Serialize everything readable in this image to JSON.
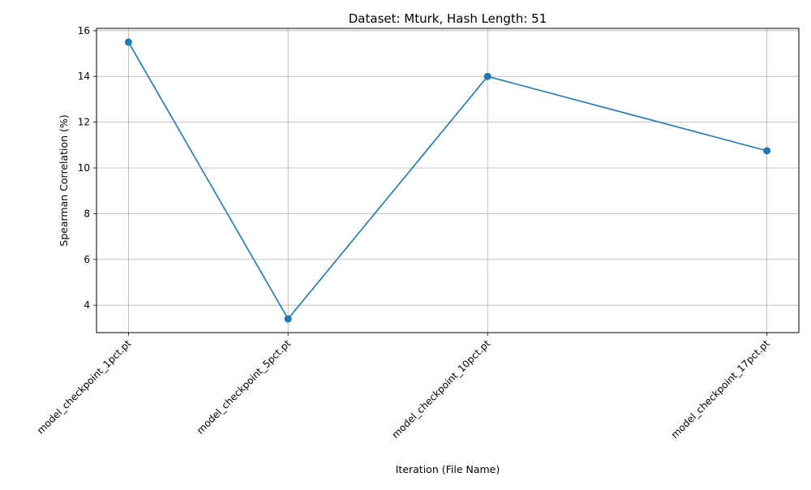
{
  "chart_data": {
    "type": "line",
    "title": "Dataset: Mturk, Hash Length: 51",
    "xlabel": "Iteration (File Name)",
    "ylabel": "Spearman Correlation (%)",
    "x": [
      1,
      5,
      10,
      17
    ],
    "x_tick_labels": [
      "model_checkpoint_1pct.pt",
      "model_checkpoint_5pct.pt",
      "model_checkpoint_10pct.pt",
      "model_checkpoint_17pct.pt"
    ],
    "series": [
      {
        "values": [
          15.5,
          3.4,
          14.0,
          10.75
        ],
        "color": "#1f77b4",
        "marker": "circle"
      }
    ],
    "xlim": [
      0.2,
      17.8
    ],
    "ylim": [
      2.8,
      16.1
    ],
    "y_ticks": [
      4,
      6,
      8,
      10,
      12,
      14,
      16
    ],
    "grid": true,
    "legend": "none"
  }
}
